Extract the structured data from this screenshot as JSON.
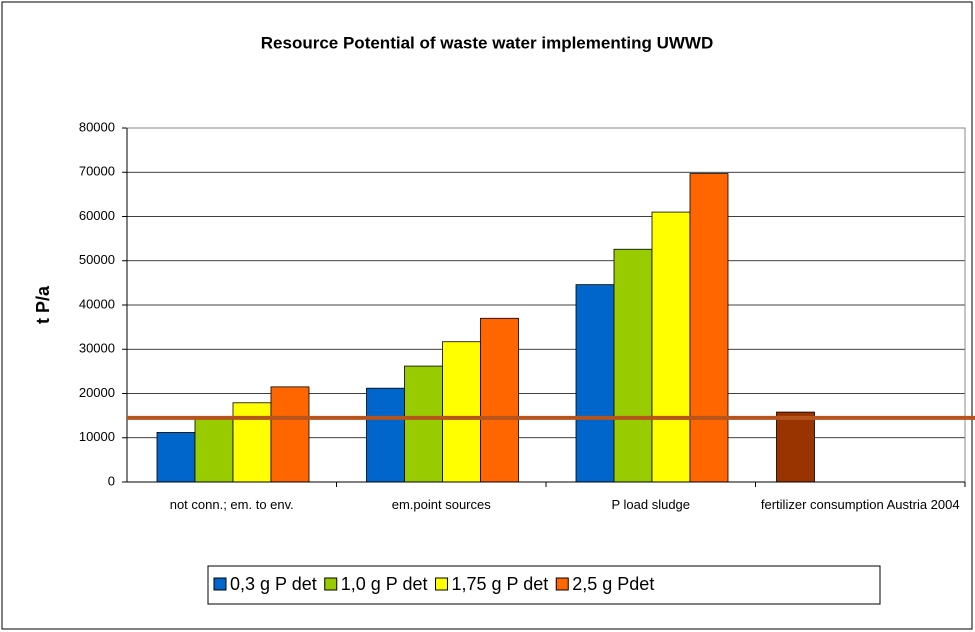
{
  "chart_data": {
    "type": "bar",
    "title": "Resource Potential of waste water implementing UWWD",
    "y_label": "t P/a",
    "categories": [
      "not conn.; em. to env.",
      "em.point sources",
      "P load sludge",
      "fertilizer consumption Austria 2004"
    ],
    "series": [
      {
        "name": "0,3 g P det",
        "color": "#0066cc",
        "values": [
          11200,
          21200,
          44600,
          null
        ]
      },
      {
        "name": "1,0 g P det",
        "color": "#99cc00",
        "values": [
          14500,
          26200,
          52600,
          null
        ]
      },
      {
        "name": "1,75 g P det",
        "color": "#ffff00",
        "values": [
          17900,
          31700,
          61000,
          null
        ]
      },
      {
        "name": "2,5 g Pdet",
        "color": "#ff6600",
        "values": [
          21500,
          37000,
          69700,
          null
        ]
      }
    ],
    "reference_bar": {
      "color": "#993300",
      "values": [
        null,
        null,
        null,
        15800
      ]
    },
    "reference_line": {
      "color": "#b5541c",
      "value": 14500
    },
    "ylim": [
      0,
      80000
    ],
    "yticks": [
      0,
      10000,
      20000,
      30000,
      40000,
      50000,
      60000,
      70000,
      80000
    ],
    "grid": true
  }
}
